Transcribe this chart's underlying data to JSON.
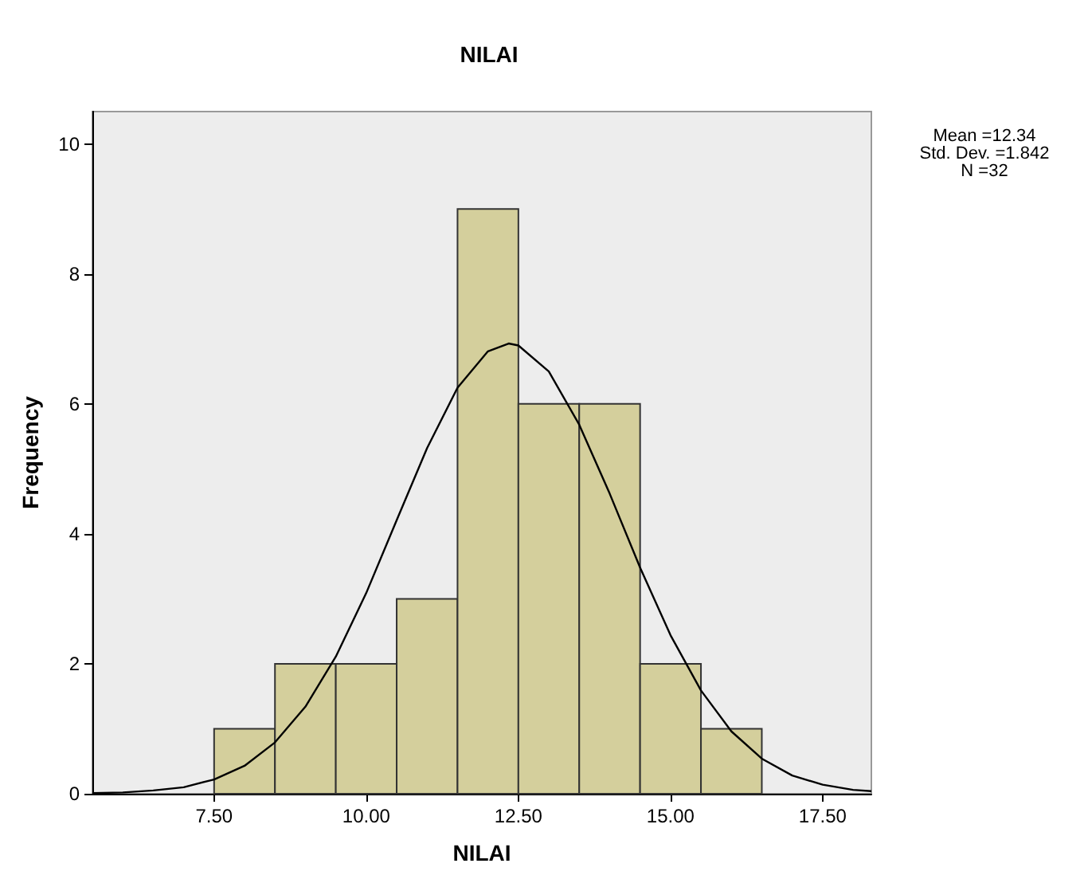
{
  "chart_data": {
    "type": "histogram",
    "title": "NILAI",
    "xlabel": "NILAI",
    "ylabel": "Frequency",
    "annotations": [
      "Mean =12.34",
      "Std. Dev. =1.842",
      "N =32"
    ],
    "bins": [
      7.5,
      8.5,
      9.5,
      10.5,
      11.5,
      12.5,
      13.5,
      14.5,
      15.5,
      16.5
    ],
    "series": [
      {
        "color": "#d4cf9c",
        "values": [
          1,
          2,
          2,
          3,
          9,
          6,
          6,
          2,
          1
        ]
      },
      {
        "type": "line",
        "color": "#000000",
        "marker": "none",
        "x": [
          5.5,
          6,
          6.5,
          7,
          7.5,
          8,
          8.5,
          9,
          9.5,
          10,
          10.5,
          11,
          11.5,
          12,
          12.34,
          12.5,
          13,
          13.5,
          14,
          14.5,
          15,
          15.5,
          16,
          16.5,
          17,
          17.5,
          18,
          18.3
        ],
        "values": [
          0.01,
          0.02,
          0.05,
          0.1,
          0.22,
          0.43,
          0.79,
          1.34,
          2.11,
          3.09,
          4.21,
          5.32,
          6.25,
          6.81,
          6.93,
          6.9,
          6.5,
          5.68,
          4.62,
          3.48,
          2.44,
          1.59,
          0.96,
          0.54,
          0.28,
          0.14,
          0.06,
          0.04
        ]
      }
    ],
    "xlim": [
      5.5,
      18.3
    ],
    "ylim": [
      0,
      10.5
    ],
    "xticks": [
      {
        "value": 7.5,
        "label": "7.50"
      },
      {
        "value": 10,
        "label": "10.00"
      },
      {
        "value": 12.5,
        "label": "12.50"
      },
      {
        "value": 15,
        "label": "15.00"
      },
      {
        "value": 17.5,
        "label": "17.50"
      }
    ],
    "yticks": [
      0,
      2,
      4,
      6,
      8,
      10
    ]
  }
}
